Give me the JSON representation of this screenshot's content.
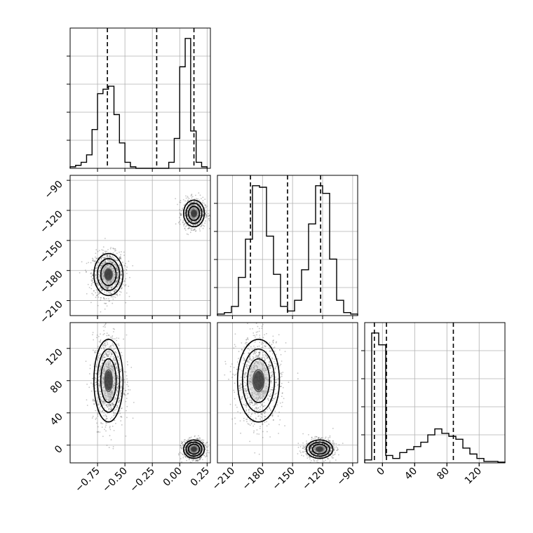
{
  "chart_data": {
    "type": "corner",
    "parameters": [
      {
        "name": "",
        "range": [
          -1.0,
          0.28
        ],
        "ticks": [
          -0.75,
          -0.5,
          -0.25,
          0.0,
          0.25
        ],
        "tick_labels": [
          "−0.75",
          "−0.50",
          "−0.25",
          "0.00",
          "0.25"
        ],
        "quantiles": [
          -0.66,
          -0.21,
          0.13
        ],
        "hist_bins": [
          -1.0,
          -0.95,
          -0.9,
          -0.85,
          -0.8,
          -0.75,
          -0.7,
          -0.65,
          -0.6,
          -0.55,
          -0.5,
          -0.45,
          -0.4,
          -0.35,
          -0.3,
          -0.25,
          -0.2,
          -0.15,
          -0.1,
          -0.05,
          0.0,
          0.05,
          0.1,
          0.15,
          0.2,
          0.25
        ],
        "hist_counts": [
          0.01,
          0.02,
          0.04,
          0.09,
          0.26,
          0.5,
          0.53,
          0.55,
          0.36,
          0.17,
          0.04,
          0.01,
          0.0,
          0.0,
          0.0,
          0.0,
          0.0,
          0.0,
          0.04,
          0.2,
          0.68,
          0.87,
          0.25,
          0.04,
          0.01
        ]
      },
      {
        "name": "",
        "range": [
          -225,
          -85
        ],
        "ticks": [
          -210,
          -180,
          -150,
          -120,
          -90
        ],
        "tick_labels": [
          "−210",
          "−180",
          "−150",
          "−120",
          "−90"
        ],
        "quantiles": [
          -192,
          -155,
          -122
        ],
        "hist_bins": [
          -225,
          -218,
          -211,
          -204,
          -197,
          -190,
          -183,
          -176,
          -169,
          -162,
          -155,
          -148,
          -141,
          -134,
          -127,
          -120,
          -113,
          -106,
          -99,
          -92,
          -85
        ],
        "hist_counts": [
          0.01,
          0.02,
          0.06,
          0.25,
          0.5,
          0.85,
          0.84,
          0.52,
          0.27,
          0.06,
          0.03,
          0.1,
          0.3,
          0.6,
          0.85,
          0.8,
          0.37,
          0.1,
          0.02,
          0.01
        ]
      },
      {
        "name": "",
        "range": [
          -22,
          152
        ],
        "ticks": [
          0,
          40,
          80,
          120
        ],
        "tick_labels": [
          "0",
          "40",
          "80",
          "120"
        ],
        "quantiles": [
          -10,
          5,
          88
        ],
        "hist_bins": [
          -22,
          -13.3,
          -4.6,
          4.1,
          12.8,
          21.5,
          30.2,
          38.9,
          47.6,
          56.3,
          65.0,
          73.7,
          82.4,
          91.1,
          99.8,
          108.5,
          117.2,
          125.9,
          134.6,
          143.3,
          152
        ],
        "hist_counts": [
          0.02,
          0.88,
          0.8,
          0.05,
          0.03,
          0.07,
          0.09,
          0.11,
          0.14,
          0.19,
          0.23,
          0.2,
          0.18,
          0.16,
          0.1,
          0.06,
          0.03,
          0.01,
          0.01,
          0.005
        ]
      }
    ],
    "modes": [
      {
        "mean": [
          -0.65,
          -184,
          80
        ],
        "sd": [
          0.07,
          11,
          27
        ]
      },
      {
        "mean": [
          0.13,
          -123,
          -5
        ],
        "sd": [
          0.05,
          7,
          6
        ]
      }
    ],
    "grid": true,
    "colors": {
      "line": "#000000",
      "grid": "#b0b0b0",
      "points": "#555555"
    }
  }
}
